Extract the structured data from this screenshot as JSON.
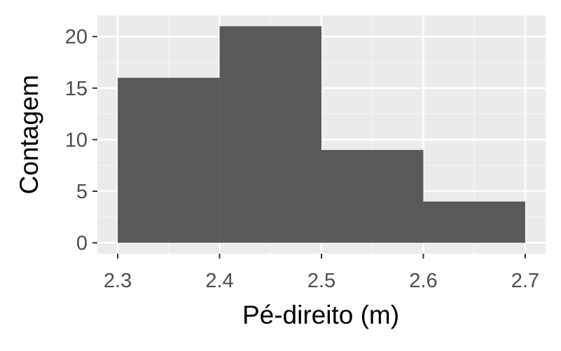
{
  "chart_data": {
    "type": "bar",
    "subtype": "histogram",
    "xlabel": "Pé-direito (m)",
    "ylabel": "Contagem",
    "bins": [
      {
        "x0": 2.3,
        "x1": 2.4,
        "count": 16
      },
      {
        "x0": 2.4,
        "x1": 2.5,
        "count": 21
      },
      {
        "x0": 2.5,
        "x1": 2.6,
        "count": 9
      },
      {
        "x0": 2.6,
        "x1": 2.7,
        "count": 4
      }
    ],
    "x_ticks": [
      {
        "value": 2.3,
        "label": "2.3"
      },
      {
        "value": 2.4,
        "label": "2.4"
      },
      {
        "value": 2.5,
        "label": "2.5"
      },
      {
        "value": 2.6,
        "label": "2.6"
      },
      {
        "value": 2.7,
        "label": "2.7"
      }
    ],
    "y_ticks": [
      {
        "value": 0,
        "label": "0"
      },
      {
        "value": 5,
        "label": "5"
      },
      {
        "value": 10,
        "label": "10"
      },
      {
        "value": 15,
        "label": "15"
      },
      {
        "value": 20,
        "label": "20"
      }
    ],
    "xlim": [
      2.28,
      2.72
    ],
    "ylim": [
      -1.05,
      22.05
    ],
    "grid": true,
    "legend": "none",
    "colors": {
      "panel_background": "#ebebeb",
      "grid_major": "#ffffff",
      "grid_minor": "#f5f5f5",
      "bar_fill": "#595959",
      "tick_mark": "#333333"
    }
  }
}
